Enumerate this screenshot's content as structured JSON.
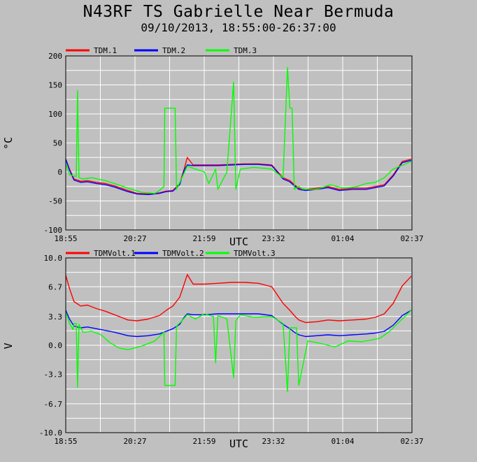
{
  "title": "N43RF TS Gabrielle Near Bermuda",
  "subtitle": "09/10/2013, 18:55:00-26:37:00",
  "chart_data": [
    {
      "type": "line",
      "ylabel": "°C",
      "xlabel": "UTC",
      "grid": true,
      "legend_position": "top-left",
      "xlim": [
        18.9167,
        26.6167
      ],
      "ylim": [
        -100,
        200
      ],
      "x_tick_labels": [
        "18:55",
        "20:27",
        "21:59",
        "23:32",
        "01:04",
        "02:37"
      ],
      "y_tick_labels": [
        "200",
        "150",
        "100",
        "50",
        "0",
        "-50",
        "-100"
      ],
      "y_ticks": [
        200,
        150,
        100,
        50,
        0,
        -50,
        -100
      ],
      "series": [
        {
          "name": "TDM.1",
          "color": "#ff0000",
          "x": [
            18.917,
            19.0,
            19.1,
            19.25,
            19.4,
            19.6,
            19.8,
            20.0,
            20.15,
            20.3,
            20.5,
            20.75,
            21.0,
            21.15,
            21.3,
            21.45,
            21.55,
            21.62,
            21.75,
            22.0,
            22.3,
            22.6,
            22.9,
            23.2,
            23.5,
            23.75,
            23.9,
            24.0,
            24.1,
            24.25,
            24.5,
            24.75,
            25.0,
            25.3,
            25.6,
            25.8,
            26.0,
            26.2,
            26.4,
            26.6
          ],
          "y": [
            22,
            5,
            -12,
            -16,
            -15,
            -18,
            -20,
            -24,
            -28,
            -32,
            -37,
            -38,
            -36,
            -33,
            -32,
            -20,
            5,
            25,
            12,
            12,
            12,
            13,
            14,
            14,
            12,
            -10,
            -15,
            -22,
            -28,
            -30,
            -28,
            -25,
            -30,
            -28,
            -28,
            -25,
            -22,
            -5,
            18,
            22
          ]
        },
        {
          "name": "TDM.2",
          "color": "#0000ff",
          "x": [
            18.917,
            19.0,
            19.1,
            19.25,
            19.4,
            19.6,
            19.8,
            20.0,
            20.15,
            20.3,
            20.5,
            20.75,
            21.0,
            21.15,
            21.3,
            21.45,
            21.55,
            21.62,
            21.75,
            22.0,
            22.3,
            22.6,
            22.9,
            23.2,
            23.5,
            23.75,
            23.9,
            24.0,
            24.1,
            24.25,
            24.5,
            24.75,
            25.0,
            25.3,
            25.6,
            25.8,
            26.0,
            26.2,
            26.4,
            26.6
          ],
          "y": [
            22,
            3,
            -14,
            -18,
            -17,
            -20,
            -22,
            -26,
            -30,
            -34,
            -38,
            -39,
            -37,
            -34,
            -33,
            -22,
            3,
            12,
            11,
            11,
            11,
            12,
            13,
            13,
            11,
            -12,
            -17,
            -24,
            -30,
            -32,
            -30,
            -27,
            -32,
            -30,
            -30,
            -27,
            -24,
            -7,
            16,
            20
          ]
        },
        {
          "name": "TDM.3",
          "color": "#00ff00",
          "x": [
            18.917,
            19.0,
            19.15,
            19.18,
            19.21,
            19.3,
            19.5,
            19.8,
            20.0,
            20.3,
            20.6,
            20.9,
            21.0,
            21.1,
            21.12,
            21.35,
            21.38,
            21.5,
            21.62,
            21.8,
            22.0,
            22.1,
            22.25,
            22.3,
            22.5,
            22.65,
            22.7,
            22.8,
            23.1,
            23.5,
            23.75,
            23.85,
            23.9,
            23.95,
            24.0,
            24.1,
            24.2,
            24.5,
            24.8,
            25.1,
            25.4,
            25.6,
            25.8,
            26.0,
            26.2,
            26.6
          ],
          "y": [
            15,
            -5,
            -8,
            140,
            -10,
            -12,
            -10,
            -15,
            -20,
            -28,
            -35,
            -37,
            -32,
            -25,
            110,
            110,
            -30,
            -10,
            10,
            5,
            0,
            -20,
            5,
            -30,
            0,
            155,
            -30,
            5,
            8,
            5,
            -10,
            180,
            110,
            110,
            -30,
            -25,
            -30,
            -30,
            -22,
            -28,
            -25,
            -20,
            -18,
            -10,
            5,
            18
          ]
        }
      ]
    },
    {
      "type": "line",
      "ylabel": "V",
      "xlabel": "UTC",
      "grid": true,
      "legend_position": "top-left",
      "xlim": [
        18.9167,
        26.6167
      ],
      "ylim": [
        -10,
        10
      ],
      "x_tick_labels": [
        "18:55",
        "20:27",
        "21:59",
        "23:32",
        "01:04",
        "02:37"
      ],
      "y_tick_labels": [
        "10.0",
        "6.7",
        "3.3",
        "0.0",
        "-3.3",
        "-6.7",
        "-10.0"
      ],
      "y_ticks": [
        10,
        6.7,
        3.3,
        0,
        -3.3,
        -6.7,
        -10
      ],
      "series": [
        {
          "name": "TDMVolt.1",
          "color": "#ff0000",
          "x": [
            18.917,
            19.0,
            19.1,
            19.25,
            19.4,
            19.6,
            19.8,
            20.0,
            20.15,
            20.3,
            20.5,
            20.75,
            21.0,
            21.15,
            21.3,
            21.45,
            21.55,
            21.62,
            21.75,
            22.0,
            22.3,
            22.6,
            22.9,
            23.2,
            23.5,
            23.75,
            23.9,
            24.0,
            24.1,
            24.25,
            24.5,
            24.75,
            25.0,
            25.3,
            25.6,
            25.8,
            26.0,
            26.2,
            26.4,
            26.6
          ],
          "y": [
            8.0,
            6.5,
            5.0,
            4.5,
            4.6,
            4.2,
            3.9,
            3.5,
            3.2,
            2.9,
            2.8,
            3.0,
            3.4,
            4.0,
            4.5,
            5.5,
            7.0,
            8.1,
            7.0,
            7.0,
            7.1,
            7.2,
            7.2,
            7.1,
            6.7,
            4.8,
            4.0,
            3.4,
            2.9,
            2.6,
            2.7,
            2.9,
            2.8,
            2.9,
            3.0,
            3.2,
            3.6,
            4.8,
            6.8,
            7.9
          ]
        },
        {
          "name": "TDMVolt.2",
          "color": "#0000ff",
          "x": [
            18.917,
            19.0,
            19.1,
            19.25,
            19.4,
            19.6,
            19.8,
            20.0,
            20.15,
            20.3,
            20.5,
            20.75,
            21.0,
            21.15,
            21.3,
            21.45,
            21.55,
            21.62,
            21.75,
            22.0,
            22.3,
            22.6,
            22.9,
            23.2,
            23.5,
            23.75,
            23.9,
            24.0,
            24.1,
            24.25,
            24.5,
            24.75,
            25.0,
            25.3,
            25.6,
            25.8,
            26.0,
            26.2,
            26.4,
            26.6
          ],
          "y": [
            4.0,
            3.0,
            2.2,
            2.0,
            2.1,
            1.9,
            1.7,
            1.5,
            1.3,
            1.1,
            1.0,
            1.1,
            1.3,
            1.6,
            1.9,
            2.4,
            3.2,
            3.6,
            3.5,
            3.5,
            3.6,
            3.6,
            3.6,
            3.6,
            3.4,
            2.4,
            1.9,
            1.5,
            1.2,
            1.0,
            1.1,
            1.2,
            1.1,
            1.2,
            1.3,
            1.4,
            1.6,
            2.3,
            3.4,
            4.0
          ]
        },
        {
          "name": "TDMVolt.3",
          "color": "#00ff00",
          "x": [
            18.917,
            19.0,
            19.08,
            19.1,
            19.15,
            19.18,
            19.21,
            19.3,
            19.5,
            19.7,
            19.9,
            20.1,
            20.3,
            20.6,
            20.9,
            21.0,
            21.1,
            21.12,
            21.35,
            21.38,
            21.5,
            21.62,
            21.8,
            22.0,
            22.2,
            22.25,
            22.3,
            22.5,
            22.65,
            22.7,
            22.8,
            23.1,
            23.5,
            23.75,
            23.85,
            23.9,
            24.05,
            24.1,
            24.3,
            24.6,
            24.9,
            25.2,
            25.5,
            25.7,
            25.9,
            26.1,
            26.3,
            26.6
          ],
          "y": [
            3.8,
            2.5,
            1.8,
            2.5,
            2.5,
            -4.8,
            2.4,
            1.5,
            1.6,
            1.2,
            0.3,
            -0.3,
            -0.5,
            -0.1,
            0.5,
            1.0,
            1.5,
            -4.6,
            -4.6,
            2.2,
            2.8,
            3.5,
            3.0,
            3.6,
            3.3,
            -2.0,
            3.4,
            3.0,
            -3.7,
            2.8,
            3.5,
            3.2,
            3.3,
            2.5,
            -5.3,
            2.0,
            2.0,
            -4.6,
            0.5,
            0.2,
            -0.2,
            0.5,
            0.4,
            0.6,
            0.8,
            1.5,
            2.5,
            4.0
          ]
        }
      ]
    }
  ]
}
